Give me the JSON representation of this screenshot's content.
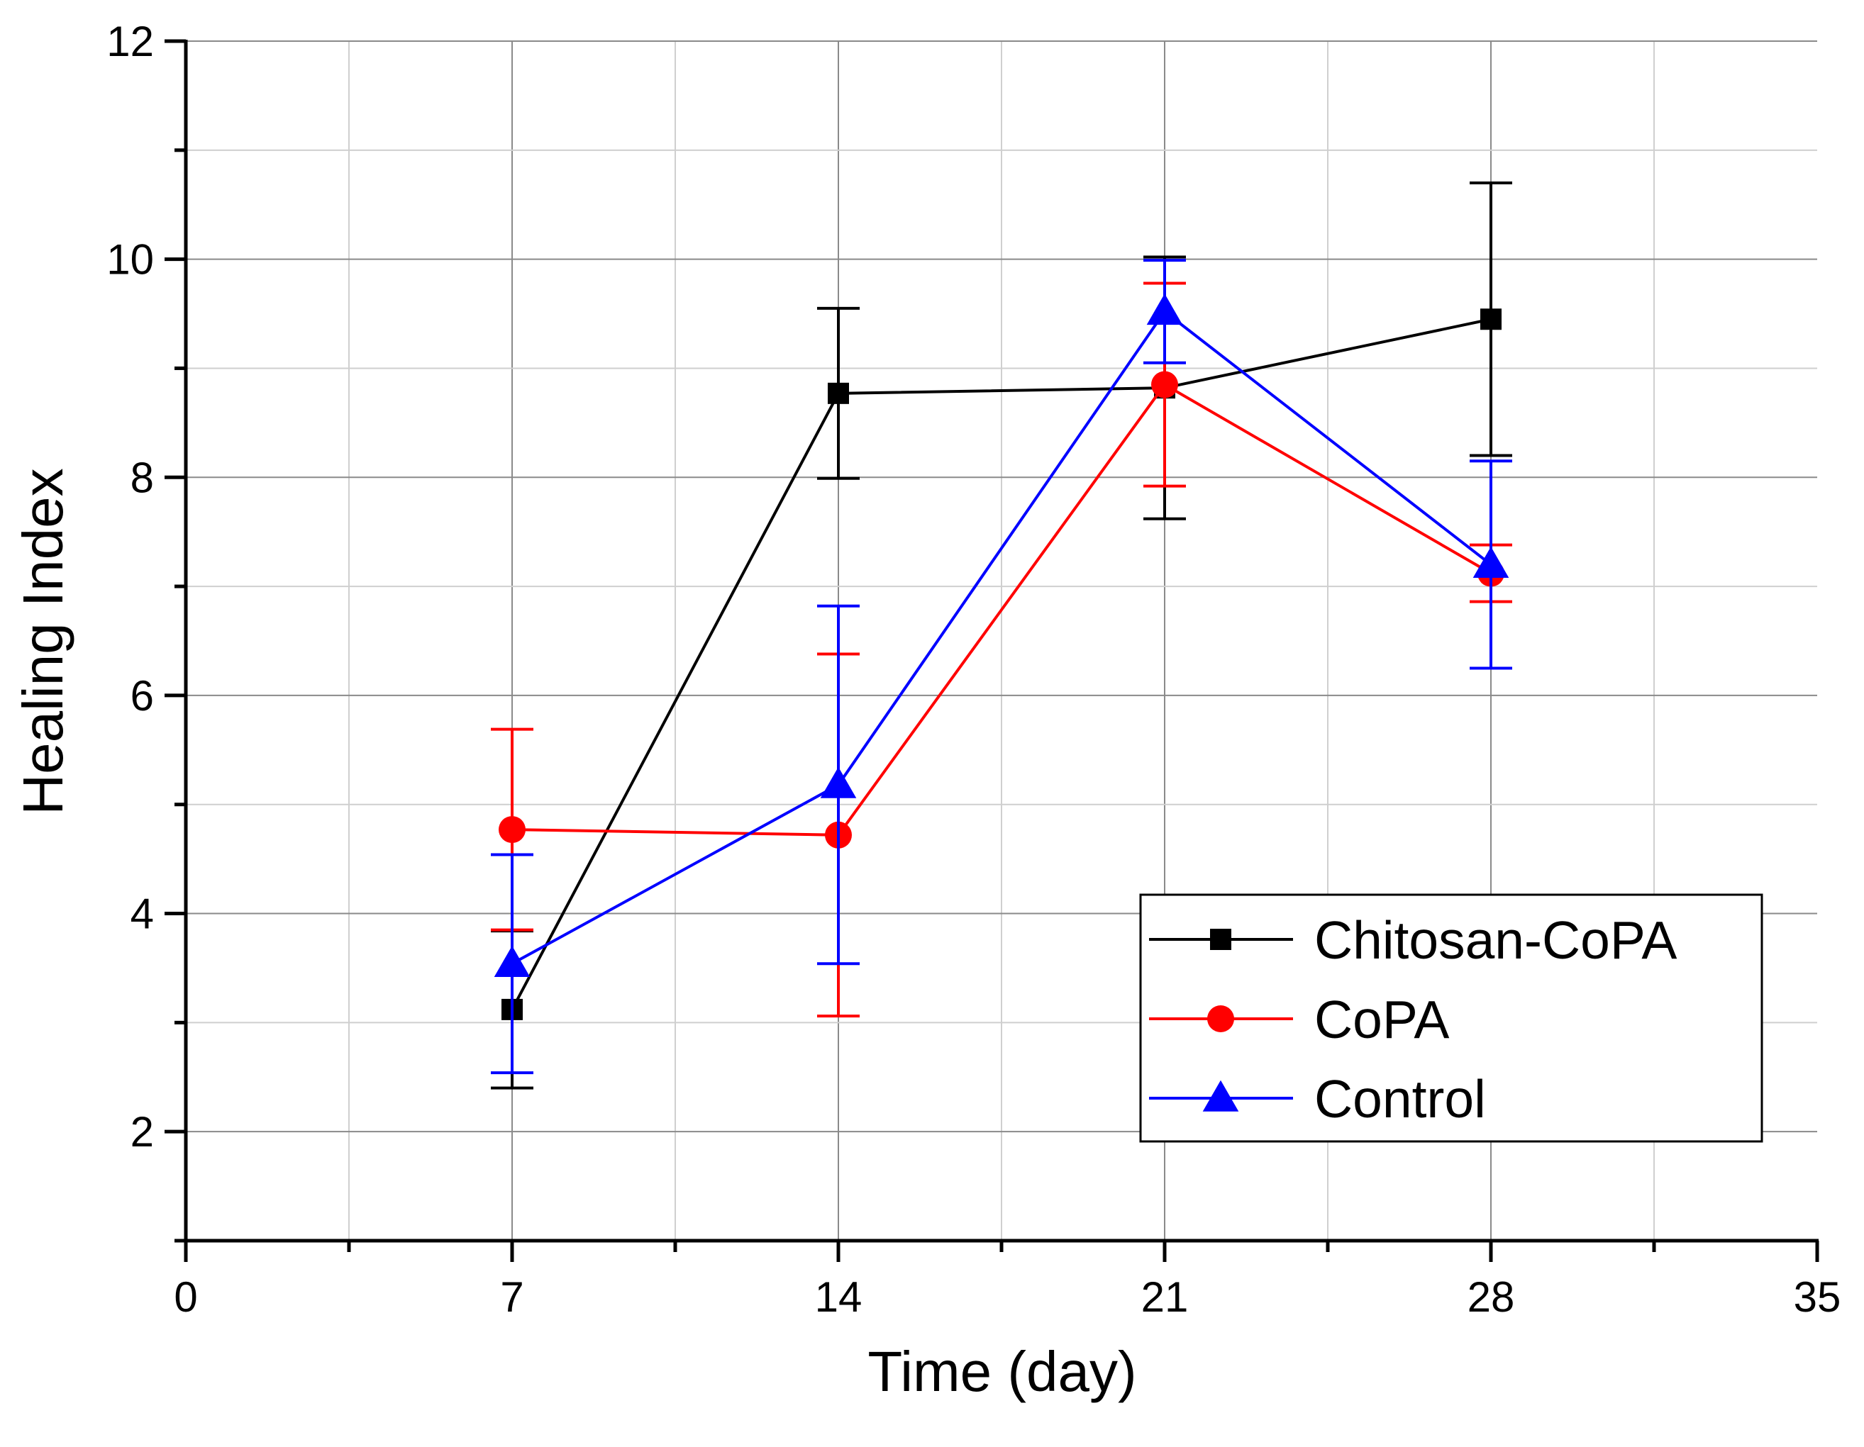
{
  "chart_data": {
    "type": "line",
    "title": "",
    "xlabel": "Time (day)",
    "ylabel": "Healing Index",
    "xlim": [
      0,
      35
    ],
    "ylim": [
      1,
      12
    ],
    "xticks": [
      0,
      7,
      14,
      21,
      28,
      35
    ],
    "xtick_labels": [
      "0",
      "7",
      "14",
      "21",
      "28",
      "35"
    ],
    "yticks": [
      2,
      4,
      6,
      8,
      10,
      12
    ],
    "ytick_labels": [
      "2",
      "4",
      "6",
      "8",
      "10",
      "12"
    ],
    "grid": true,
    "legend_position": "bottom-right",
    "series": [
      {
        "name": "Chitosan-CoPA",
        "color": "#000000",
        "marker": "square",
        "x": [
          7,
          14,
          21,
          28
        ],
        "values": [
          3.12,
          8.77,
          8.82,
          9.45
        ],
        "error": [
          0.72,
          0.78,
          1.2,
          1.25
        ]
      },
      {
        "name": "CoPA",
        "color": "#ff0000",
        "marker": "circle",
        "x": [
          7,
          14,
          21,
          28
        ],
        "values": [
          4.77,
          4.72,
          8.85,
          7.12
        ],
        "error": [
          0.92,
          1.66,
          0.93,
          0.26
        ]
      },
      {
        "name": "Control",
        "color": "#0000ff",
        "marker": "triangle",
        "x": [
          7,
          14,
          21,
          28
        ],
        "values": [
          3.54,
          5.18,
          9.52,
          7.2
        ],
        "error": [
          1.0,
          1.64,
          0.47,
          0.95
        ]
      }
    ]
  }
}
